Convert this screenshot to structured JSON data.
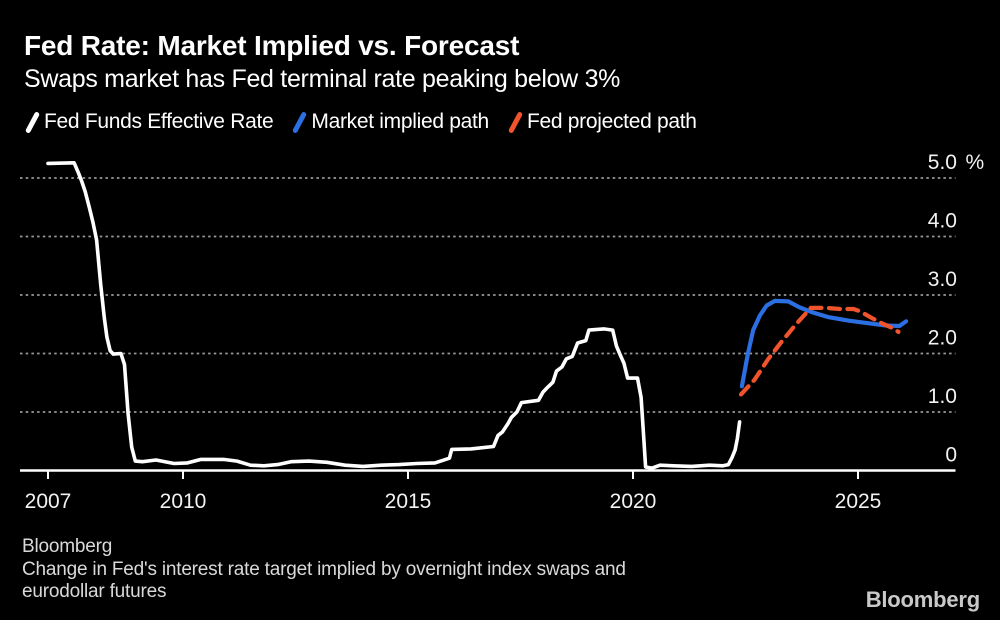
{
  "header": {
    "title": "Fed Rate: Market Implied vs. Forecast",
    "subtitle": "Swaps market has Fed terminal rate peaking below 3%"
  },
  "legend": {
    "items": [
      {
        "label": "Fed Funds Effective Rate",
        "color": "#ffffff",
        "style": "solid"
      },
      {
        "label": "Market implied path",
        "color": "#2b6fe3",
        "style": "solid"
      },
      {
        "label": "Fed projected path",
        "color": "#f0542c",
        "style": "dashed"
      }
    ]
  },
  "chart_data": {
    "type": "line",
    "title": "Fed Rate: Market Implied vs. Forecast",
    "subtitle": "Swaps market has Fed terminal rate peaking below 3%",
    "xlabel": "",
    "ylabel": "%",
    "xlim": [
      2006.4,
      2027.2
    ],
    "ylim": [
      0,
      5.0
    ],
    "grid": "horizontal-dotted",
    "legend_position": "top",
    "x_ticks": [
      {
        "v": 2007,
        "label": "2007"
      },
      {
        "v": 2010,
        "label": "2010"
      },
      {
        "v": 2015,
        "label": "2015"
      },
      {
        "v": 2020,
        "label": "2020"
      },
      {
        "v": 2025,
        "label": "2025"
      }
    ],
    "y_ticks": [
      {
        "v": 0,
        "label": "0"
      },
      {
        "v": 1,
        "label": "1.0"
      },
      {
        "v": 2,
        "label": "2.0"
      },
      {
        "v": 3,
        "label": "3.0"
      },
      {
        "v": 4,
        "label": "4.0"
      },
      {
        "v": 5,
        "label": "5.0",
        "suffix": "%"
      }
    ],
    "series": [
      {
        "name": "Fed Funds Effective Rate",
        "color": "#ffffff",
        "style": "solid",
        "points": [
          [
            2007.0,
            5.25
          ],
          [
            2007.58,
            5.26
          ],
          [
            2007.68,
            5.08
          ],
          [
            2007.75,
            4.94
          ],
          [
            2007.83,
            4.76
          ],
          [
            2007.92,
            4.49
          ],
          [
            2008.0,
            4.24
          ],
          [
            2008.08,
            3.94
          ],
          [
            2008.17,
            3.18
          ],
          [
            2008.25,
            2.61
          ],
          [
            2008.31,
            2.28
          ],
          [
            2008.38,
            2.05
          ],
          [
            2008.45,
            1.99
          ],
          [
            2008.62,
            2.0
          ],
          [
            2008.7,
            1.81
          ],
          [
            2008.78,
            0.97
          ],
          [
            2008.86,
            0.4
          ],
          [
            2008.94,
            0.16
          ],
          [
            2009.1,
            0.15
          ],
          [
            2009.4,
            0.18
          ],
          [
            2009.8,
            0.12
          ],
          [
            2010.1,
            0.13
          ],
          [
            2010.4,
            0.19
          ],
          [
            2010.9,
            0.19
          ],
          [
            2011.2,
            0.16
          ],
          [
            2011.5,
            0.09
          ],
          [
            2011.8,
            0.08
          ],
          [
            2012.1,
            0.1
          ],
          [
            2012.4,
            0.15
          ],
          [
            2012.8,
            0.16
          ],
          [
            2013.2,
            0.14
          ],
          [
            2013.6,
            0.09
          ],
          [
            2014.0,
            0.07
          ],
          [
            2014.4,
            0.09
          ],
          [
            2014.8,
            0.1
          ],
          [
            2015.2,
            0.12
          ],
          [
            2015.6,
            0.13
          ],
          [
            2015.92,
            0.21
          ],
          [
            2015.97,
            0.36
          ],
          [
            2016.4,
            0.37
          ],
          [
            2016.9,
            0.41
          ],
          [
            2017.0,
            0.6
          ],
          [
            2017.1,
            0.66
          ],
          [
            2017.22,
            0.8
          ],
          [
            2017.3,
            0.91
          ],
          [
            2017.42,
            1.0
          ],
          [
            2017.52,
            1.16
          ],
          [
            2017.9,
            1.2
          ],
          [
            2018.0,
            1.34
          ],
          [
            2018.1,
            1.42
          ],
          [
            2018.22,
            1.51
          ],
          [
            2018.3,
            1.7
          ],
          [
            2018.42,
            1.77
          ],
          [
            2018.52,
            1.91
          ],
          [
            2018.65,
            1.95
          ],
          [
            2018.77,
            2.18
          ],
          [
            2018.95,
            2.22
          ],
          [
            2019.02,
            2.4
          ],
          [
            2019.35,
            2.42
          ],
          [
            2019.55,
            2.4
          ],
          [
            2019.63,
            2.13
          ],
          [
            2019.72,
            1.97
          ],
          [
            2019.8,
            1.83
          ],
          [
            2019.88,
            1.58
          ],
          [
            2020.1,
            1.58
          ],
          [
            2020.18,
            1.25
          ],
          [
            2020.23,
            0.65
          ],
          [
            2020.28,
            0.06
          ],
          [
            2020.42,
            0.04
          ],
          [
            2020.6,
            0.09
          ],
          [
            2020.9,
            0.08
          ],
          [
            2021.3,
            0.07
          ],
          [
            2021.7,
            0.09
          ],
          [
            2022.0,
            0.08
          ],
          [
            2022.12,
            0.1
          ],
          [
            2022.2,
            0.22
          ],
          [
            2022.27,
            0.35
          ],
          [
            2022.32,
            0.55
          ],
          [
            2022.37,
            0.83
          ]
        ]
      },
      {
        "name": "Market implied path",
        "color": "#2b6fe3",
        "style": "solid",
        "points": [
          [
            2022.42,
            1.44
          ],
          [
            2022.55,
            1.98
          ],
          [
            2022.67,
            2.4
          ],
          [
            2022.82,
            2.65
          ],
          [
            2022.97,
            2.82
          ],
          [
            2023.15,
            2.9
          ],
          [
            2023.45,
            2.89
          ],
          [
            2023.7,
            2.79
          ],
          [
            2024.0,
            2.7
          ],
          [
            2024.35,
            2.62
          ],
          [
            2024.8,
            2.56
          ],
          [
            2025.2,
            2.52
          ],
          [
            2025.6,
            2.48
          ],
          [
            2025.92,
            2.47
          ],
          [
            2026.07,
            2.55
          ]
        ]
      },
      {
        "name": "Fed projected path",
        "color": "#f0542c",
        "style": "dashed",
        "points": [
          [
            2022.4,
            1.3
          ],
          [
            2022.7,
            1.55
          ],
          [
            2023.0,
            1.9
          ],
          [
            2023.3,
            2.2
          ],
          [
            2023.6,
            2.48
          ],
          [
            2023.95,
            2.78
          ],
          [
            2024.3,
            2.78
          ],
          [
            2024.6,
            2.76
          ],
          [
            2024.9,
            2.76
          ],
          [
            2025.05,
            2.72
          ],
          [
            2025.3,
            2.61
          ],
          [
            2025.55,
            2.51
          ],
          [
            2025.75,
            2.44
          ],
          [
            2025.9,
            2.37
          ]
        ]
      }
    ]
  },
  "footer": {
    "source": "Bloomberg",
    "note_lines": [
      "Change in Fed's interest rate target implied by overnight index swaps and",
      "eurodollar futures"
    ],
    "logo": "Bloomberg"
  },
  "colors": {
    "background": "#000000",
    "text": "#ffffff",
    "grid": "#999999",
    "axis": "#ffffff",
    "tick_label": "#f2f2f2",
    "footer_text": "#d9d9d9",
    "logo": "#c9c9c9"
  }
}
